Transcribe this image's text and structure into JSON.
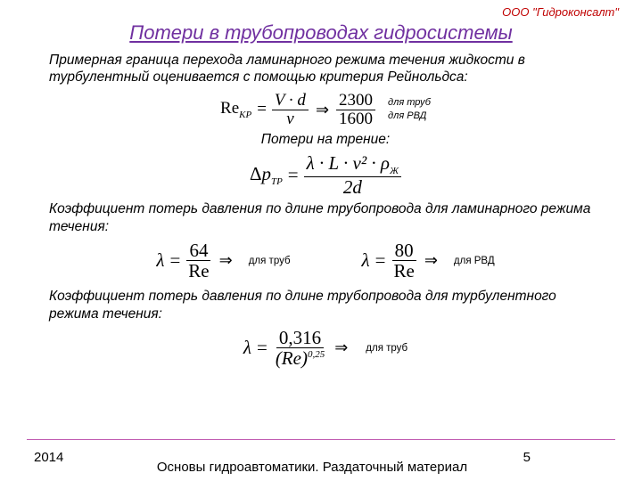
{
  "colors": {
    "company": "#c00000",
    "title": "#7030a0",
    "text": "#000000",
    "hr": "#c05ab0",
    "page": "#000000"
  },
  "company": "ООО \"Гидроконсалт\"",
  "title": "Потери в трубопроводах гидросистемы",
  "para1": "Примерная граница перехода ламинарного режима течения жидкости в турбулентный оценивается с помощью критерия Рейнольдса:",
  "reynolds": {
    "lhs": "Re",
    "lhs_sub": "KP",
    "num1": "V · d",
    "den1": "ν",
    "num2": "2300",
    "den2": "1600",
    "label_top": "для труб",
    "label_bot": "для РВД"
  },
  "friction_label": "Потери на трение:",
  "friction": {
    "lhs": "Δp",
    "lhs_sub": "TP",
    "num": "λ · L · v² · ρ",
    "num_sub": "Ж",
    "den": "2d"
  },
  "para2": "Коэффициент потерь давления по длине трубопровода для ламинарного режима течения:",
  "lambda_laminar": {
    "left_num": "64",
    "left_den": "Re",
    "left_label": "для труб",
    "right_num": "80",
    "right_den": "Rе",
    "right_label": "для РВД"
  },
  "para3": "Коэффициент потерь давления по длине трубопровода для турбулентного режима течения:",
  "lambda_turb": {
    "num": "0,316",
    "den_base": "(Re)",
    "den_exp": "0,25",
    "label": "для труб"
  },
  "footer": {
    "year": "2014",
    "title": "Основы гидроавтоматики. Раздаточный материал",
    "page": "5"
  }
}
